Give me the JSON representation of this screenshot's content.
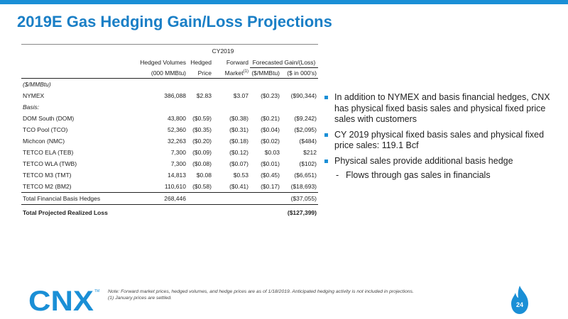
{
  "header": {
    "title": "2019E Gas Hedging Gain/Loss Projections"
  },
  "table": {
    "group_header": "CY2019",
    "col_headers_top": [
      "Hedged Volumes",
      "Hedged",
      "Forward",
      "Forecasted Gain/(Loss)"
    ],
    "col_headers_bottom": [
      "(000 MMBtu)",
      "Price",
      "Market",
      "(1)",
      "($/MMBtu)",
      "($ in 000's)"
    ],
    "unit_label": "($/MMBtu)",
    "nymex": [
      "NYMEX",
      "386,088",
      "$2.83",
      "$3.07",
      "($0.23)",
      "($90,344)"
    ],
    "basis_label": "Basis:",
    "basis_rows": [
      [
        "DOM South (DOM)",
        "43,800",
        "($0.59)",
        "($0.38)",
        "($0.21)",
        "($9,242)"
      ],
      [
        "TCO Pool (TCO)",
        "52,360",
        "($0.35)",
        "($0.31)",
        "($0.04)",
        "($2,095)"
      ],
      [
        "Michcon (NMC)",
        "32,263",
        "($0.20)",
        "($0.18)",
        "($0.02)",
        "($484)"
      ],
      [
        "TETCO ELA (TEB)",
        "7,300",
        "($0.09)",
        "($0.12)",
        "$0.03",
        "$212"
      ],
      [
        "TETCO WLA (TWB)",
        "7,300",
        "($0.08)",
        "($0.07)",
        "($0.01)",
        "($102)"
      ],
      [
        "TETCO M3 (TMT)",
        "14,813",
        "$0.08",
        "$0.53",
        "($0.45)",
        "($6,651)"
      ],
      [
        "TETCO M2 (BM2)",
        "110,610",
        "($0.58)",
        "($0.41)",
        "($0.17)",
        "($18,693)"
      ]
    ],
    "total_basis": [
      "Total Financial Basis Hedges",
      "268,446",
      "($37,055)"
    ],
    "total_loss": [
      "Total Projected Realized Loss",
      "($127,399)"
    ]
  },
  "bullets": {
    "b1": "In addition to NYMEX and basis financial hedges, CNX has physical fixed basis sales and physical fixed price sales with customers",
    "b2": "CY 2019 physical fixed basis sales and physical fixed price sales: 119.1 Bcf",
    "b3": "Physical sales provide additional basis hedge",
    "b3_sub_dash": "-",
    "b3_sub": "Flows through gas sales in financials"
  },
  "footer": {
    "logo_text": "CNX",
    "logo_tm": "TM",
    "note_line1": "Note: Forward market prices, hedged volumes, and hedge prices are as of 1/18/2019. Anticipated hedging activity is not included in projections.",
    "note_line2": "(1)   January prices are settled.",
    "page_number": "24"
  },
  "colors": {
    "accent": "#1a8fd6",
    "title": "#1a7fc6"
  }
}
